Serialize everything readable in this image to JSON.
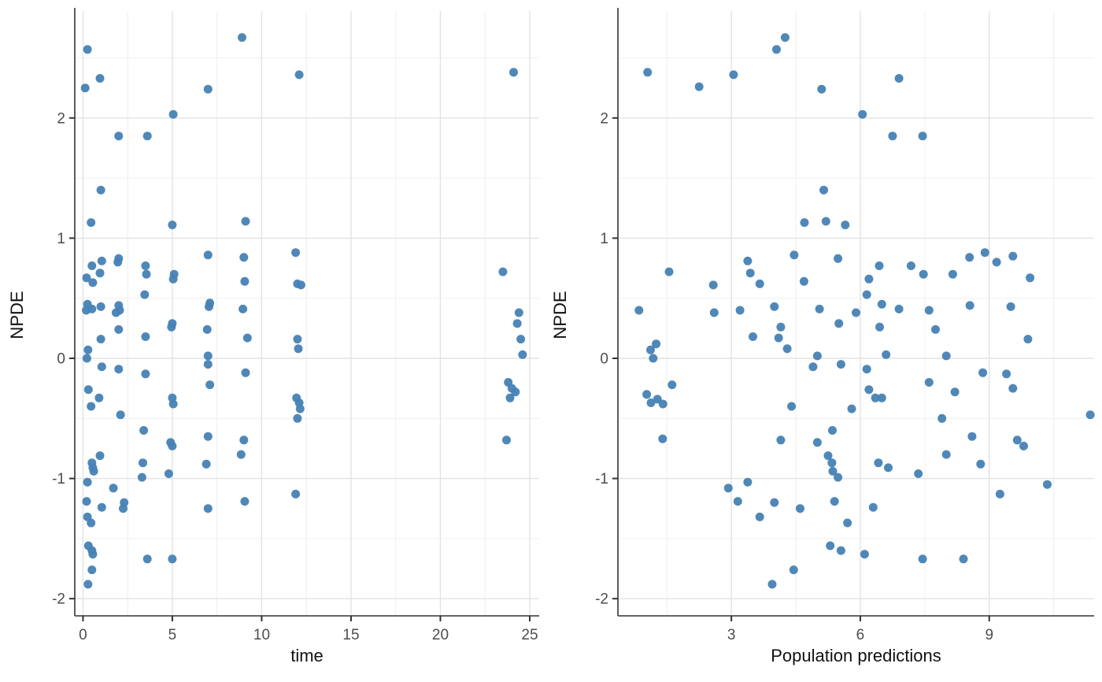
{
  "figure": {
    "background": "#ffffff",
    "point_color": "#4682B4",
    "point_radius": 5.5,
    "grid_major_color": "#e3e3e3",
    "grid_minor_color": "#f1f1f1",
    "axis_line_color": "#333333",
    "tick_color": "#333333",
    "tick_label_color": "#4d4d4d",
    "axis_title_color": "#111111"
  },
  "chart_data": [
    {
      "type": "scatter",
      "title": "",
      "xlabel": "time",
      "ylabel": "NPDE",
      "xlim": [
        -0.46,
        25.53
      ],
      "ylim": [
        -2.143,
        2.89
      ],
      "grid": true,
      "legend": "none",
      "x_major_ticks": {
        "values": [
          0,
          5,
          10,
          15,
          20,
          25
        ],
        "labels": [
          "0",
          "5",
          "10",
          "15",
          "20",
          "25"
        ]
      },
      "x_minor_ticks": [
        2.5,
        7.5,
        12.5,
        17.5,
        22.5
      ],
      "y_major_ticks": {
        "values": [
          2,
          1,
          0,
          -1,
          -2
        ],
        "labels": [
          "2",
          "1",
          "0",
          "-1",
          "-2"
        ]
      },
      "y_minor_ticks": [
        2.5,
        1.5,
        0.5,
        -0.5,
        -1.5
      ],
      "points": [
        [
          0.12,
          2.25
        ],
        [
          0.2,
          0.67
        ],
        [
          0.25,
          0.45
        ],
        [
          0.18,
          0.4
        ],
        [
          0.28,
          0.07
        ],
        [
          0.22,
          0.0
        ],
        [
          0.3,
          -0.26
        ],
        [
          0.25,
          -1.03
        ],
        [
          0.2,
          -1.19
        ],
        [
          0.25,
          -1.32
        ],
        [
          0.3,
          -1.56
        ],
        [
          0.28,
          -1.88
        ],
        [
          0.25,
          2.57
        ],
        [
          0.45,
          1.13
        ],
        [
          0.5,
          0.77
        ],
        [
          0.55,
          0.63
        ],
        [
          0.5,
          0.41
        ],
        [
          0.45,
          -0.4
        ],
        [
          0.5,
          -0.87
        ],
        [
          0.55,
          -0.91
        ],
        [
          0.6,
          -0.94
        ],
        [
          0.45,
          -1.37
        ],
        [
          0.5,
          -1.6
        ],
        [
          0.55,
          -1.63
        ],
        [
          0.5,
          -1.76
        ],
        [
          0.95,
          2.33
        ],
        [
          1.0,
          1.4
        ],
        [
          1.05,
          0.81
        ],
        [
          0.95,
          0.71
        ],
        [
          1.0,
          0.43
        ],
        [
          1.0,
          0.16
        ],
        [
          1.05,
          -0.07
        ],
        [
          0.9,
          -0.33
        ],
        [
          0.95,
          -0.81
        ],
        [
          1.05,
          -1.24
        ],
        [
          2.0,
          1.85
        ],
        [
          2.0,
          0.83
        ],
        [
          1.95,
          0.8
        ],
        [
          2.0,
          0.44
        ],
        [
          2.05,
          0.4
        ],
        [
          1.85,
          0.38
        ],
        [
          2.0,
          0.24
        ],
        [
          2.0,
          -0.09
        ],
        [
          2.1,
          -0.47
        ],
        [
          1.7,
          -1.08
        ],
        [
          2.3,
          -1.2
        ],
        [
          2.25,
          -1.25
        ],
        [
          3.6,
          1.85
        ],
        [
          3.5,
          0.77
        ],
        [
          3.55,
          0.7
        ],
        [
          3.45,
          0.53
        ],
        [
          3.5,
          0.18
        ],
        [
          3.5,
          -0.13
        ],
        [
          3.4,
          -0.6
        ],
        [
          3.35,
          -0.87
        ],
        [
          3.3,
          -0.99
        ],
        [
          3.6,
          -1.67
        ],
        [
          5.05,
          2.03
        ],
        [
          5.0,
          1.11
        ],
        [
          5.1,
          0.7
        ],
        [
          5.05,
          0.66
        ],
        [
          5.0,
          0.29
        ],
        [
          4.95,
          0.26
        ],
        [
          5.0,
          -0.33
        ],
        [
          5.05,
          -0.38
        ],
        [
          4.9,
          -0.7
        ],
        [
          5.0,
          -0.73
        ],
        [
          4.8,
          -0.96
        ],
        [
          5.0,
          -1.67
        ],
        [
          7.0,
          2.24
        ],
        [
          7.0,
          0.86
        ],
        [
          7.1,
          0.46
        ],
        [
          7.05,
          0.43
        ],
        [
          6.95,
          0.24
        ],
        [
          7.0,
          0.02
        ],
        [
          7.0,
          -0.05
        ],
        [
          7.1,
          -0.22
        ],
        [
          7.0,
          -0.65
        ],
        [
          6.9,
          -0.88
        ],
        [
          7.0,
          -1.25
        ],
        [
          8.9,
          2.67
        ],
        [
          9.1,
          1.14
        ],
        [
          9.0,
          0.84
        ],
        [
          9.05,
          0.64
        ],
        [
          8.95,
          0.41
        ],
        [
          9.2,
          0.17
        ],
        [
          9.1,
          -0.12
        ],
        [
          9.0,
          -0.68
        ],
        [
          8.85,
          -0.8
        ],
        [
          9.05,
          -1.19
        ],
        [
          12.1,
          2.36
        ],
        [
          11.9,
          0.88
        ],
        [
          12.0,
          0.62
        ],
        [
          12.2,
          0.61
        ],
        [
          12.0,
          0.16
        ],
        [
          12.05,
          0.08
        ],
        [
          11.95,
          -0.33
        ],
        [
          12.1,
          -0.37
        ],
        [
          12.15,
          -0.42
        ],
        [
          12.0,
          -0.5
        ],
        [
          11.9,
          -1.13
        ],
        [
          24.1,
          2.38
        ],
        [
          23.5,
          0.72
        ],
        [
          24.4,
          0.38
        ],
        [
          24.3,
          0.29
        ],
        [
          24.5,
          0.16
        ],
        [
          24.6,
          0.03
        ],
        [
          23.8,
          -0.2
        ],
        [
          24.0,
          -0.25
        ],
        [
          24.2,
          -0.28
        ],
        [
          23.9,
          -0.33
        ],
        [
          23.7,
          -0.68
        ]
      ]
    },
    {
      "type": "scatter",
      "title": "",
      "xlabel": "Population predictions",
      "ylabel": "NPDE",
      "xlim": [
        0.36,
        11.44
      ],
      "ylim": [
        -2.143,
        2.89
      ],
      "grid": true,
      "legend": "none",
      "x_major_ticks": {
        "values": [
          3,
          6,
          9
        ],
        "labels": [
          "3",
          "6",
          "9"
        ]
      },
      "x_minor_ticks": [
        1.5,
        4.5,
        7.5,
        10.5
      ],
      "y_major_ticks": {
        "values": [
          2,
          1,
          0,
          -1,
          -2
        ],
        "labels": [
          "2",
          "1",
          "0",
          "-1",
          "-2"
        ]
      },
      "y_minor_ticks": [
        2.5,
        1.5,
        0.5,
        -0.5,
        -1.5
      ],
      "points": [
        [
          4.25,
          2.67
        ],
        [
          4.05,
          2.57
        ],
        [
          1.05,
          2.38
        ],
        [
          3.05,
          2.36
        ],
        [
          2.25,
          2.26
        ],
        [
          6.9,
          2.33
        ],
        [
          5.1,
          2.24
        ],
        [
          6.05,
          2.03
        ],
        [
          6.75,
          1.85
        ],
        [
          7.45,
          1.85
        ],
        [
          5.15,
          1.4
        ],
        [
          4.7,
          1.13
        ],
        [
          5.2,
          1.14
        ],
        [
          5.65,
          1.11
        ],
        [
          3.38,
          0.81
        ],
        [
          4.46,
          0.86
        ],
        [
          5.48,
          0.83
        ],
        [
          8.54,
          0.84
        ],
        [
          9.55,
          0.85
        ],
        [
          9.17,
          0.8
        ],
        [
          8.9,
          0.88
        ],
        [
          1.55,
          0.72
        ],
        [
          2.58,
          0.61
        ],
        [
          3.44,
          0.71
        ],
        [
          3.66,
          0.62
        ],
        [
          4.69,
          0.64
        ],
        [
          6.44,
          0.77
        ],
        [
          7.18,
          0.77
        ],
        [
          7.47,
          0.7
        ],
        [
          8.15,
          0.7
        ],
        [
          6.2,
          0.66
        ],
        [
          9.95,
          0.67
        ],
        [
          0.85,
          0.4
        ],
        [
          6.5,
          0.45
        ],
        [
          8.55,
          0.44
        ],
        [
          9.5,
          0.43
        ],
        [
          4.0,
          0.43
        ],
        [
          5.05,
          0.41
        ],
        [
          6.9,
          0.41
        ],
        [
          7.6,
          0.4
        ],
        [
          3.2,
          0.4
        ],
        [
          2.6,
          0.38
        ],
        [
          5.9,
          0.38
        ],
        [
          6.15,
          0.53
        ],
        [
          5.5,
          0.29
        ],
        [
          6.45,
          0.26
        ],
        [
          7.75,
          0.24
        ],
        [
          4.15,
          0.26
        ],
        [
          3.5,
          0.18
        ],
        [
          4.1,
          0.17
        ],
        [
          1.25,
          0.12
        ],
        [
          9.9,
          0.16
        ],
        [
          1.12,
          0.07
        ],
        [
          4.3,
          0.08
        ],
        [
          6.6,
          0.03
        ],
        [
          5.0,
          0.02
        ],
        [
          1.18,
          0.0
        ],
        [
          8.0,
          0.02
        ],
        [
          5.55,
          -0.05
        ],
        [
          4.9,
          -0.07
        ],
        [
          6.15,
          -0.09
        ],
        [
          8.85,
          -0.12
        ],
        [
          9.4,
          -0.13
        ],
        [
          7.6,
          -0.2
        ],
        [
          1.62,
          -0.22
        ],
        [
          9.55,
          -0.25
        ],
        [
          6.2,
          -0.26
        ],
        [
          8.2,
          -0.28
        ],
        [
          1.03,
          -0.3
        ],
        [
          1.28,
          -0.34
        ],
        [
          1.13,
          -0.37
        ],
        [
          1.41,
          -0.38
        ],
        [
          6.35,
          -0.33
        ],
        [
          6.5,
          -0.33
        ],
        [
          4.4,
          -0.4
        ],
        [
          5.8,
          -0.42
        ],
        [
          11.35,
          -0.47
        ],
        [
          7.9,
          -0.5
        ],
        [
          5.35,
          -0.6
        ],
        [
          8.6,
          -0.65
        ],
        [
          1.4,
          -0.67
        ],
        [
          9.65,
          -0.68
        ],
        [
          4.15,
          -0.68
        ],
        [
          5.0,
          -0.7
        ],
        [
          9.8,
          -0.73
        ],
        [
          8.0,
          -0.8
        ],
        [
          5.25,
          -0.81
        ],
        [
          5.34,
          -0.87
        ],
        [
          6.42,
          -0.87
        ],
        [
          8.8,
          -0.88
        ],
        [
          6.65,
          -0.91
        ],
        [
          5.36,
          -0.94
        ],
        [
          7.35,
          -0.96
        ],
        [
          5.48,
          -0.99
        ],
        [
          3.38,
          -1.03
        ],
        [
          10.35,
          -1.05
        ],
        [
          2.93,
          -1.08
        ],
        [
          9.25,
          -1.13
        ],
        [
          3.15,
          -1.19
        ],
        [
          5.4,
          -1.19
        ],
        [
          4.0,
          -1.2
        ],
        [
          6.3,
          -1.24
        ],
        [
          4.6,
          -1.25
        ],
        [
          3.66,
          -1.32
        ],
        [
          5.7,
          -1.37
        ],
        [
          5.3,
          -1.56
        ],
        [
          5.55,
          -1.6
        ],
        [
          6.1,
          -1.63
        ],
        [
          7.45,
          -1.67
        ],
        [
          8.4,
          -1.67
        ],
        [
          4.45,
          -1.76
        ],
        [
          3.95,
          -1.88
        ]
      ]
    }
  ]
}
